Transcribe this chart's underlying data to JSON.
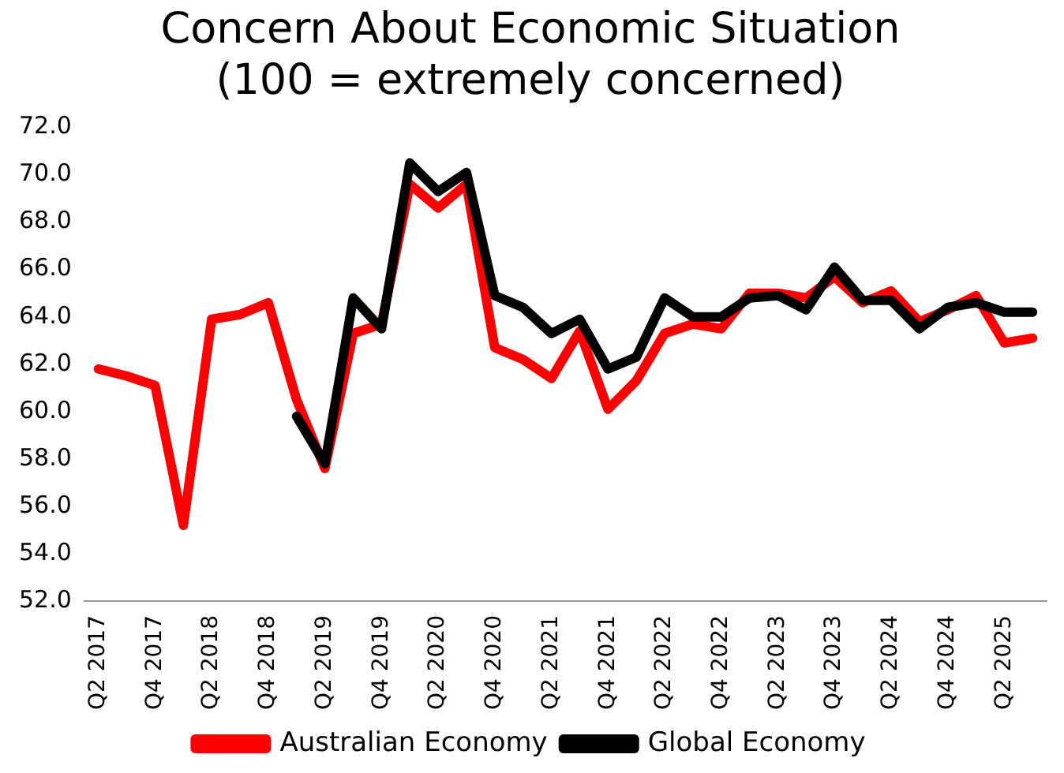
{
  "chart_data": {
    "type": "line",
    "title": [
      "Concern About Economic Situation",
      "(100 = extremely concerned)"
    ],
    "categories": [
      "Q2 2017",
      null,
      "Q4 2017",
      null,
      "Q2 2018",
      null,
      "Q4 2018",
      null,
      "Q2 2019",
      null,
      "Q4 2019",
      null,
      "Q2 2020",
      null,
      "Q4 2020",
      null,
      "Q2 2021",
      null,
      "Q4 2021",
      null,
      "Q2 2022",
      null,
      "Q4 2022",
      null,
      "Q2 2023",
      null,
      "Q4 2023",
      null,
      "Q2 2024",
      null,
      "Q4 2024",
      null,
      "Q2 2025",
      null
    ],
    "series": [
      {
        "name": "Australian Economy",
        "color": "#ff0000",
        "values": [
          61.8,
          61.5,
          61.1,
          55.2,
          63.9,
          64.1,
          64.6,
          60.5,
          57.6,
          63.3,
          63.7,
          69.6,
          68.6,
          69.6,
          62.7,
          62.2,
          61.4,
          63.4,
          60.1,
          61.3,
          63.3,
          63.7,
          63.5,
          65.0,
          65.0,
          64.8,
          65.7,
          64.6,
          65.1,
          63.8,
          64.3,
          64.9,
          62.9,
          63.1
        ]
      },
      {
        "name": "Global Economy",
        "color": "#000000",
        "values": [
          null,
          null,
          null,
          null,
          null,
          null,
          null,
          59.8,
          57.8,
          64.8,
          63.5,
          70.5,
          69.3,
          70.1,
          64.9,
          64.4,
          63.3,
          63.9,
          61.8,
          62.3,
          64.8,
          64.0,
          64.0,
          64.8,
          64.9,
          64.3,
          66.1,
          64.7,
          64.7,
          63.5,
          64.4,
          64.6,
          64.2,
          64.2
        ]
      }
    ],
    "ylim": [
      52,
      72
    ],
    "yticks": [
      {
        "value": 52,
        "label": "52.0"
      },
      {
        "value": 54,
        "label": "54.0"
      },
      {
        "value": 56,
        "label": "56.0"
      },
      {
        "value": 58,
        "label": "58.0"
      },
      {
        "value": 60,
        "label": "60.0"
      },
      {
        "value": 62,
        "label": "62.0"
      },
      {
        "value": 64,
        "label": "64.0"
      },
      {
        "value": 66,
        "label": "66.0"
      },
      {
        "value": 68,
        "label": "68.0"
      },
      {
        "value": 70,
        "label": "70.0"
      },
      {
        "value": 72,
        "label": "72.0"
      }
    ],
    "grid": false,
    "legend": "bottom",
    "marker": "none",
    "line_style": "solid"
  }
}
